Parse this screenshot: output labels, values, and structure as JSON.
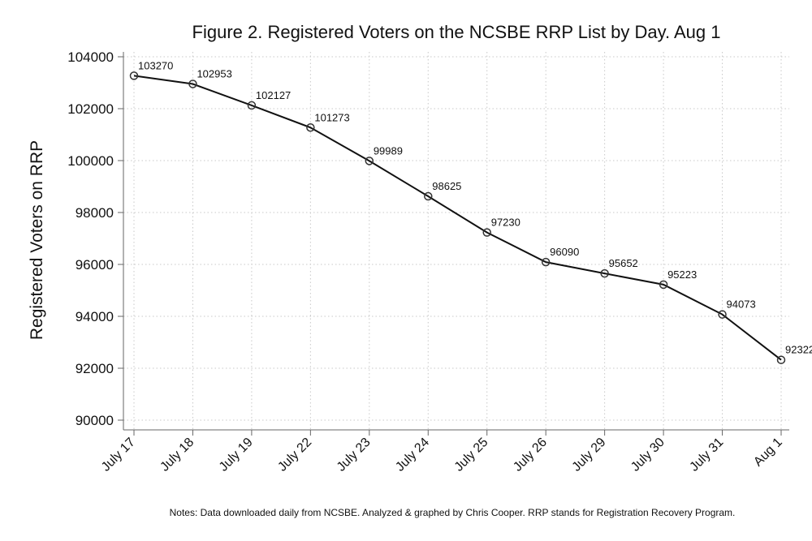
{
  "chart_data": {
    "type": "line",
    "title": "Figure 2. Registered Voters on the NCSBE RRP List by Day. Aug 1",
    "ylabel": "Registered Voters on RRP",
    "xlabel": "",
    "categories": [
      "July 17",
      "July 18",
      "July 19",
      "July 22",
      "July 23",
      "July 24",
      "July 25",
      "July 26",
      "July 29",
      "July 30",
      "July 31",
      "Aug 1"
    ],
    "series": [
      {
        "name": "Registered Voters on RRP",
        "values": [
          103270,
          102953,
          102127,
          101273,
          99989,
          98625,
          97230,
          96090,
          95652,
          95223,
          94073,
          92322
        ]
      }
    ],
    "ylim": [
      90000,
      104000
    ],
    "yticks": [
      90000,
      92000,
      94000,
      96000,
      98000,
      100000,
      102000,
      104000
    ],
    "grid": true,
    "legend": "none",
    "note": "Notes: Data downloaded daily from NCSBE. Analyzed & graphed by Chris Cooper. RRP stands for Registration Recovery Program."
  },
  "colors": {
    "line": "#111111",
    "marker": "#333333",
    "grid": "#c8c8c8",
    "background": "#ffffff"
  }
}
